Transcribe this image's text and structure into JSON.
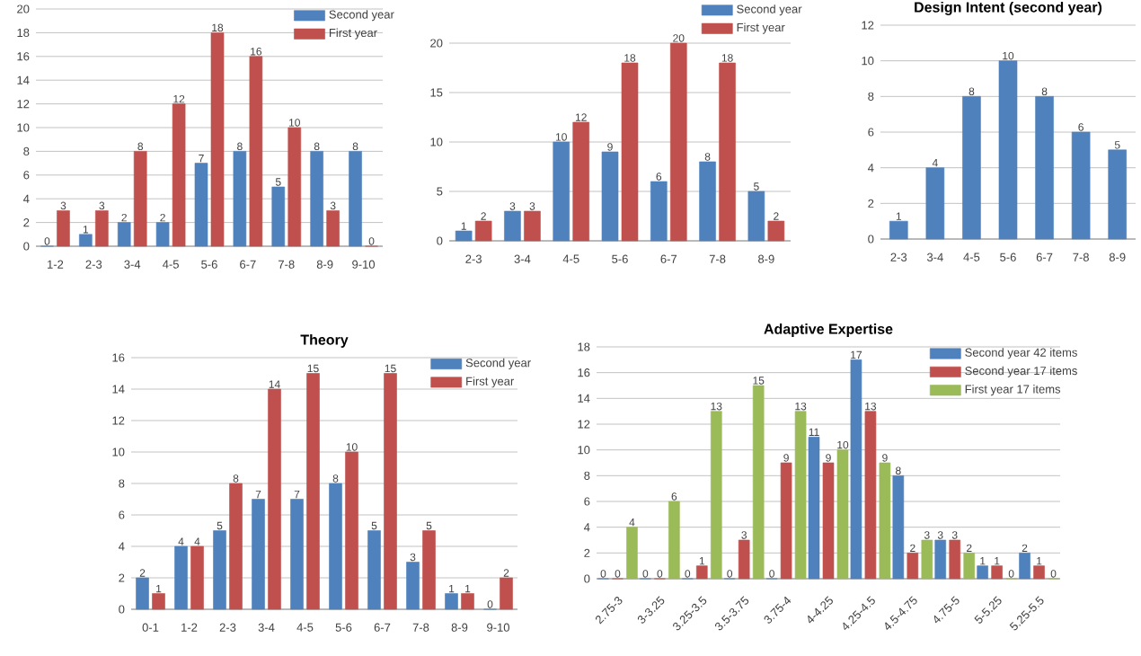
{
  "chart_data": [
    {
      "type": "bar",
      "categories": [
        "1-2",
        "2-3",
        "3-4",
        "4-5",
        "5-6",
        "6-7",
        "7-8",
        "8-9",
        "9-10"
      ],
      "series": [
        {
          "name": "Second year",
          "color": "#4f81bd",
          "values": [
            0,
            1,
            2,
            2,
            7,
            8,
            5,
            8,
            8
          ]
        },
        {
          "name": "First year",
          "color": "#c0504d",
          "values": [
            3,
            3,
            8,
            12,
            18,
            16,
            10,
            3,
            0
          ]
        }
      ],
      "ylim": [
        0,
        20
      ],
      "yticks": [
        0,
        2,
        4,
        6,
        8,
        10,
        12,
        14,
        16,
        18,
        20
      ],
      "grid": "y",
      "legend": "top right",
      "data_labels": true
    },
    {
      "type": "bar",
      "categories": [
        "2-3",
        "3-4",
        "4-5",
        "5-6",
        "6-7",
        "7-8",
        "8-9"
      ],
      "series": [
        {
          "name": "Second year",
          "color": "#4f81bd",
          "values": [
            1,
            3,
            10,
            9,
            6,
            8,
            5
          ]
        },
        {
          "name": "First year",
          "color": "#c0504d",
          "values": [
            2,
            3,
            12,
            18,
            20,
            18,
            2
          ]
        }
      ],
      "ylim": [
        0,
        24
      ],
      "yticks": [
        0,
        5,
        10,
        15,
        20
      ],
      "grid": "y",
      "legend": "top right",
      "data_labels": true
    },
    {
      "type": "bar",
      "title": "Design Intent (second year)",
      "categories": [
        "2-3",
        "3-4",
        "4-5",
        "5-6",
        "6-7",
        "7-8",
        "8-9"
      ],
      "series": [
        {
          "color": "#4f81bd",
          "values": [
            1,
            4,
            8,
            10,
            8,
            6,
            5
          ]
        }
      ],
      "ylim": [
        0,
        12
      ],
      "yticks": [
        0,
        2,
        4,
        6,
        8,
        10,
        12
      ],
      "grid": "y",
      "data_labels": true
    },
    {
      "type": "bar",
      "title": "Theory",
      "categories": [
        "0-1",
        "1-2",
        "2-3",
        "3-4",
        "4-5",
        "5-6",
        "6-7",
        "7-8",
        "8-9",
        "9-10"
      ],
      "series": [
        {
          "name": "Second year",
          "color": "#4f81bd",
          "values": [
            2,
            4,
            5,
            7,
            7,
            8,
            5,
            3,
            1,
            0
          ]
        },
        {
          "name": "First year",
          "color": "#c0504d",
          "values": [
            1,
            4,
            8,
            14,
            15,
            10,
            15,
            5,
            1,
            2
          ]
        }
      ],
      "ylim": [
        0,
        16
      ],
      "yticks": [
        0,
        2,
        4,
        6,
        8,
        10,
        12,
        14,
        16
      ],
      "grid": "y",
      "legend": "top right",
      "data_labels": true
    },
    {
      "type": "bar",
      "title": "Adaptive Expertise",
      "categories": [
        "2.75-3",
        "3-3.25",
        "3.25-3.5",
        "3.5-3.75",
        "3.75-4",
        "4-4.25",
        "4.25-4.5",
        "4.5-4.75",
        "4.75-5",
        "5-5.25",
        "5.25-5.5"
      ],
      "series": [
        {
          "name": "Second year 42 items",
          "color": "#4f81bd",
          "values": [
            0,
            0,
            0,
            0,
            0,
            11,
            17,
            8,
            3,
            1,
            2
          ]
        },
        {
          "name": "Second year 17 items",
          "color": "#c0504d",
          "values": [
            0,
            0,
            1,
            3,
            9,
            9,
            13,
            2,
            3,
            1,
            1
          ]
        },
        {
          "name": "First year 17 items",
          "color": "#9bbb59",
          "values": [
            4,
            6,
            13,
            15,
            13,
            10,
            9,
            3,
            2,
            0,
            0
          ]
        }
      ],
      "ylim": [
        0,
        18
      ],
      "yticks": [
        0,
        2,
        4,
        6,
        8,
        10,
        12,
        14,
        16,
        18
      ],
      "grid": "y",
      "legend": "top right",
      "data_labels": true
    }
  ]
}
